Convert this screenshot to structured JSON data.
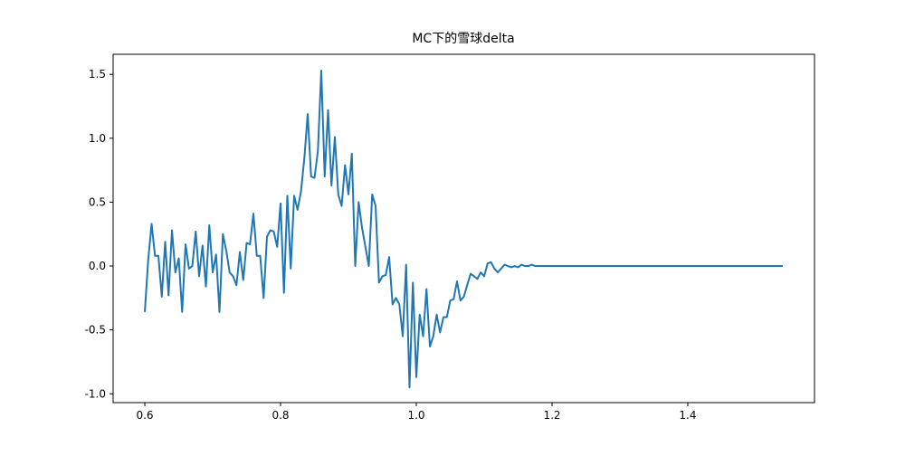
{
  "chart_data": {
    "type": "line",
    "title": "MC下的雪球delta",
    "color": "#1f77b4",
    "x": [
      0.6,
      0.605,
      0.61,
      0.615,
      0.62,
      0.625,
      0.63,
      0.635,
      0.64,
      0.645,
      0.65,
      0.655,
      0.66,
      0.665,
      0.67,
      0.675,
      0.68,
      0.685,
      0.69,
      0.695,
      0.7,
      0.705,
      0.71,
      0.715,
      0.72,
      0.725,
      0.73,
      0.735,
      0.74,
      0.745,
      0.75,
      0.755,
      0.76,
      0.765,
      0.77,
      0.775,
      0.78,
      0.785,
      0.79,
      0.795,
      0.8,
      0.805,
      0.81,
      0.815,
      0.82,
      0.825,
      0.83,
      0.835,
      0.84,
      0.845,
      0.85,
      0.855,
      0.86,
      0.865,
      0.87,
      0.875,
      0.88,
      0.885,
      0.89,
      0.895,
      0.9,
      0.905,
      0.91,
      0.915,
      0.92,
      0.925,
      0.93,
      0.935,
      0.94,
      0.945,
      0.95,
      0.955,
      0.96,
      0.965,
      0.97,
      0.975,
      0.98,
      0.985,
      0.99,
      0.995,
      1.0,
      1.005,
      1.01,
      1.015,
      1.02,
      1.025,
      1.03,
      1.035,
      1.04,
      1.045,
      1.05,
      1.055,
      1.06,
      1.065,
      1.07,
      1.075,
      1.08,
      1.085,
      1.09,
      1.095,
      1.1,
      1.105,
      1.11,
      1.115,
      1.12,
      1.125,
      1.13,
      1.135,
      1.14,
      1.145,
      1.15,
      1.155,
      1.16,
      1.165,
      1.17,
      1.175,
      1.18,
      1.185,
      1.19,
      1.195,
      1.2,
      1.3,
      1.4,
      1.5,
      1.54
    ],
    "values": [
      -0.36,
      0.05,
      0.33,
      0.08,
      0.08,
      -0.24,
      0.19,
      -0.23,
      0.28,
      -0.05,
      0.06,
      -0.36,
      0.17,
      -0.02,
      0.0,
      0.27,
      -0.08,
      0.16,
      -0.16,
      0.32,
      -0.05,
      0.09,
      -0.36,
      0.25,
      0.12,
      -0.05,
      -0.08,
      -0.15,
      0.11,
      -0.11,
      0.18,
      0.17,
      0.41,
      0.08,
      0.08,
      -0.25,
      0.23,
      0.28,
      0.27,
      0.15,
      0.49,
      -0.21,
      0.55,
      -0.02,
      0.55,
      0.44,
      0.58,
      0.84,
      1.19,
      0.7,
      0.69,
      0.9,
      1.53,
      0.7,
      1.22,
      0.63,
      1.01,
      0.56,
      0.47,
      0.79,
      0.56,
      0.88,
      0.0,
      0.5,
      0.3,
      0.15,
      0.0,
      0.56,
      0.47,
      -0.13,
      -0.08,
      -0.07,
      0.07,
      -0.3,
      -0.25,
      -0.3,
      -0.55,
      0.01,
      -0.95,
      -0.13,
      -0.87,
      -0.38,
      -0.55,
      -0.18,
      -0.63,
      -0.55,
      -0.38,
      -0.52,
      -0.4,
      -0.4,
      -0.27,
      -0.26,
      -0.12,
      -0.27,
      -0.24,
      -0.15,
      -0.06,
      -0.08,
      -0.1,
      -0.05,
      -0.08,
      0.02,
      0.03,
      -0.02,
      -0.05,
      -0.02,
      0.01,
      0.0,
      -0.01,
      0.0,
      -0.01,
      0.01,
      0.0,
      0.0,
      0.01,
      0.0,
      0.0,
      0.0,
      0.0,
      0.0,
      0.0,
      0.0,
      0.0,
      0.0,
      0.0
    ],
    "xlim": [
      0.5533,
      1.5867
    ],
    "ylim": [
      -1.069,
      1.657
    ],
    "xticks": [
      0.6,
      0.8,
      {
        "value": 1,
        "label": "1.0"
      },
      1.2,
      1.4
    ],
    "yticks": [
      {
        "value": -1,
        "label": "-1.0"
      },
      -0.5,
      {
        "value": 0,
        "label": "0.0"
      },
      0.5,
      {
        "value": 1,
        "label": "1.0"
      },
      1.5
    ]
  }
}
